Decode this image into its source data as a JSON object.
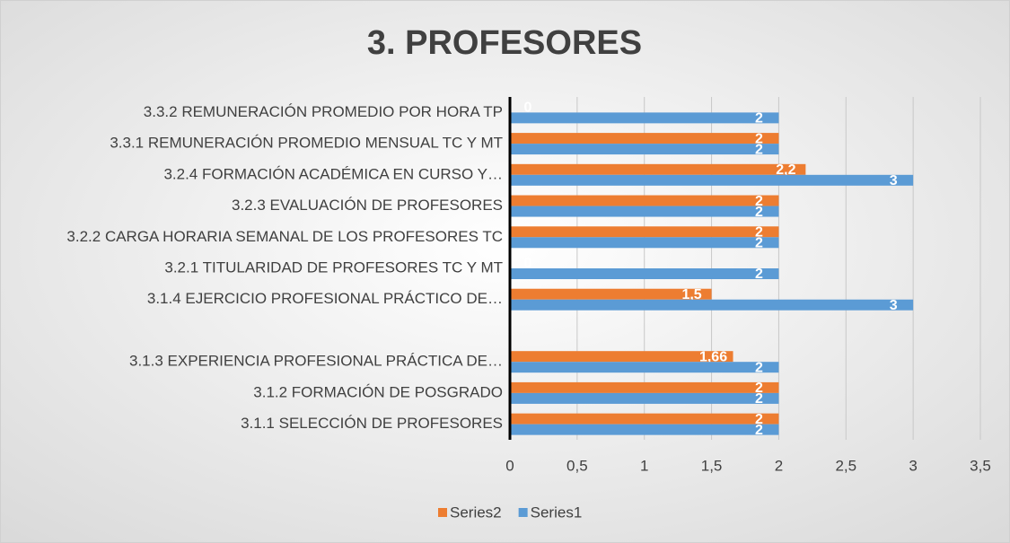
{
  "chart_data": {
    "type": "barh",
    "title": "3. PROFESORES",
    "categories": [
      "3.3.2 REMUNERACIÓN PROMEDIO POR HORA TP",
      "3.3.1 REMUNERACIÓN PROMEDIO MENSUAL TC Y MT",
      "3.2.4 FORMACIÓN ACADÉMICA EN CURSO Y…",
      "3.2.3 EVALUACIÓN DE PROFESORES",
      "3.2.2 CARGA HORARIA SEMANAL DE LOS PROFESORES TC",
      "3.2.1 TITULARIDAD DE PROFESORES TC Y MT",
      "3.1.4 EJERCICIO PROFESIONAL PRÁCTICO DE…",
      null,
      "3.1.3 EXPERIENCIA PROFESIONAL PRÁCTICA DE…",
      "3.1.2 FORMACIÓN DE POSGRADO",
      "3.1.1 SELECCIÓN DE PROFESORES"
    ],
    "series": [
      {
        "name": "Series2",
        "color": "#ed7d31",
        "values": [
          0,
          2,
          2.2,
          2,
          2,
          0,
          1.5,
          null,
          1.66,
          2,
          2
        ],
        "value_labels": [
          "0",
          "2",
          "2,2",
          "2",
          "2",
          "0",
          "1,5",
          null,
          "1,66",
          "2",
          "2"
        ]
      },
      {
        "name": "Series1",
        "color": "#5b9bd5",
        "values": [
          2,
          2,
          3,
          2,
          2,
          2,
          3,
          null,
          2,
          2,
          2
        ]
      }
    ],
    "xlim": [
      0,
      3.5
    ],
    "xticks": [
      0,
      {
        "value": 0.5,
        "label": "0,5"
      },
      1,
      {
        "value": 1.5,
        "label": "1,5"
      },
      2,
      {
        "value": 2.5,
        "label": "2,5"
      },
      3,
      {
        "value": 3.5,
        "label": "3,5"
      }
    ],
    "grid": true,
    "legend": "bottom"
  }
}
